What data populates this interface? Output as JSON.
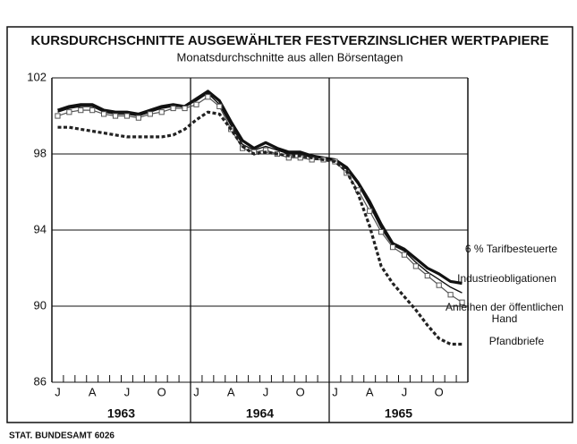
{
  "chart_data": {
    "type": "line",
    "title": "KURSDURCHSCHNITTE AUSGEWÄHLTER FESTVERZINSLICHER WERTPAPIERE",
    "subtitle": "Monatsdurchschnitte aus allen Börsentagen",
    "source": "STAT. BUNDESAMT 6026",
    "categories": [
      "J",
      null,
      null,
      "A",
      null,
      null,
      "J",
      null,
      null,
      "O",
      null,
      null,
      "J",
      null,
      null,
      "A",
      null,
      null,
      "J",
      null,
      null,
      "O",
      null,
      null,
      "J",
      null,
      null,
      "A",
      null,
      null,
      "J",
      null,
      null,
      "O",
      null,
      null
    ],
    "years": [
      "1963",
      "1964",
      "1965"
    ],
    "ylim": [
      86,
      102
    ],
    "yticks": [
      86,
      90,
      94,
      98,
      102
    ],
    "grid": true,
    "series": [
      {
        "name": "6 % Tarifbesteuerte",
        "color": "#111111",
        "width": 3.2,
        "dash": "none",
        "marker": "none",
        "values": [
          100.3,
          100.5,
          100.6,
          100.6,
          100.3,
          100.2,
          100.2,
          100.1,
          100.3,
          100.5,
          100.6,
          100.5,
          100.9,
          101.3,
          100.8,
          99.7,
          98.7,
          98.3,
          98.6,
          98.3,
          98.1,
          98.1,
          97.9,
          97.8,
          97.7,
          97.3,
          96.5,
          95.5,
          94.3,
          93.3,
          93.0,
          92.5,
          92.0,
          91.7,
          91.3,
          91.2
        ]
      },
      {
        "name": "Industrieobligationen",
        "color": "#111111",
        "width": 1.4,
        "dash": "none",
        "marker": "none",
        "values": [
          100.2,
          100.4,
          100.5,
          100.5,
          100.2,
          100.1,
          100.1,
          100.0,
          100.2,
          100.4,
          100.5,
          100.5,
          100.8,
          101.2,
          100.6,
          99.5,
          98.5,
          98.2,
          98.4,
          98.2,
          98.0,
          98.0,
          97.8,
          97.8,
          97.7,
          97.2,
          96.4,
          95.3,
          94.1,
          93.2,
          92.9,
          92.3,
          91.8,
          91.4,
          91.0,
          90.7
        ]
      },
      {
        "name": "Anleihen der öffentlichen Hand",
        "color": "#555555",
        "width": 1.2,
        "dash": "none",
        "marker": "square",
        "values": [
          100.0,
          100.2,
          100.3,
          100.3,
          100.1,
          100.0,
          100.0,
          99.9,
          100.1,
          100.2,
          100.4,
          100.4,
          100.6,
          101.0,
          100.5,
          99.3,
          98.3,
          98.1,
          98.2,
          98.0,
          97.8,
          97.8,
          97.7,
          97.7,
          97.6,
          97.0,
          96.1,
          95.0,
          93.9,
          93.1,
          92.7,
          92.1,
          91.6,
          91.1,
          90.6,
          90.2
        ]
      },
      {
        "name": "Pfandbriefe",
        "color": "#222222",
        "width": 3.2,
        "dash": "4 2.5",
        "marker": "none",
        "values": [
          99.4,
          99.4,
          99.3,
          99.2,
          99.1,
          99.0,
          98.9,
          98.9,
          98.9,
          98.9,
          99.0,
          99.3,
          99.8,
          100.2,
          100.1,
          99.3,
          98.4,
          98.0,
          98.1,
          98.0,
          97.9,
          97.9,
          97.8,
          97.7,
          97.6,
          97.1,
          95.9,
          94.2,
          92.1,
          91.2,
          90.5,
          89.8,
          89.0,
          88.3,
          88.0,
          88.0
        ]
      }
    ]
  }
}
